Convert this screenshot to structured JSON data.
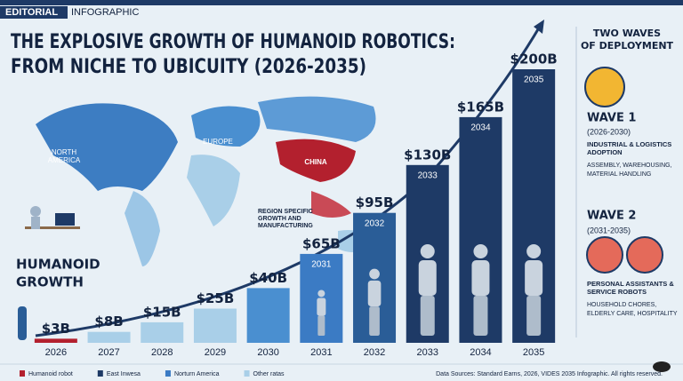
{
  "header": {
    "tag": "EDITORIAL",
    "kind": "INFOGRAPHIC",
    "title_line1": "THE EXPLOSIVE GROWTH OF HUMANOID ROBOTICS:",
    "title_line2": "FROM NICHE TO UBICUITY (2026-2035)"
  },
  "map_labels": {
    "north_america_1": "NORTH",
    "north_america_2": "AMERICA",
    "europe": "EUROPE",
    "china": "CHINA",
    "region_1": "REGION SPECIFIC",
    "region_2": "GROWTH AND",
    "region_3": "MANUFACTURING"
  },
  "side_label": {
    "line1": "HUMANOID",
    "line2": "GROWTH"
  },
  "chart_data": {
    "type": "bar",
    "categories": [
      "2026",
      "2027",
      "2028",
      "2029",
      "2030",
      "2031",
      "2032",
      "2033",
      "2034",
      "2035"
    ],
    "values": [
      3,
      8,
      15,
      25,
      40,
      65,
      95,
      130,
      165,
      200
    ],
    "value_labels": [
      "$3B",
      "$8B",
      "$15B",
      "$25B",
      "$40B",
      "$65B",
      "$95B",
      "$130B",
      "$165B",
      "$200B"
    ],
    "colors": [
      "#b3202e",
      "#a9cfe8",
      "#a9cfe8",
      "#a9cfe8",
      "#4a8fd0",
      "#3b7bc4",
      "#2a5d97",
      "#1e3a66",
      "#1e3a66",
      "#1e3a66"
    ],
    "legend": [
      {
        "name": "Humanoid robot",
        "color": "#b3202e"
      },
      {
        "name": "East Inwesa",
        "color": "#1e3a66"
      },
      {
        "name": "Norturn America",
        "color": "#3b7bc4"
      },
      {
        "name": "Other ratas",
        "color": "#a9cfe8"
      }
    ]
  },
  "sidebar": {
    "title_1": "TWO WAVES",
    "title_2": "OF DEPLOYMENT",
    "wave1": {
      "name": "WAVE 1",
      "years": "(2026-2030)",
      "head_1": "INDUSTRIAL & LOGISTICS",
      "head_2": "ADOPTION",
      "desc_1": "ASSEMBLY, WAREHOUSING,",
      "desc_2": "MATERIAL HANDLING"
    },
    "wave2": {
      "name": "WAVE 2",
      "years": "(2031-2035)",
      "head_1": "PERSONAL ASSISTANTS &",
      "head_2": "SERVICE ROBOTS",
      "desc_1": "HOUSEHOLD CHORES,",
      "desc_2": "ELDERLY CARE, HOSPITALITY"
    }
  },
  "footer": "Data Sources: Standard Earns, 2026, VIDES 2035 Infographic. All rights reserved."
}
